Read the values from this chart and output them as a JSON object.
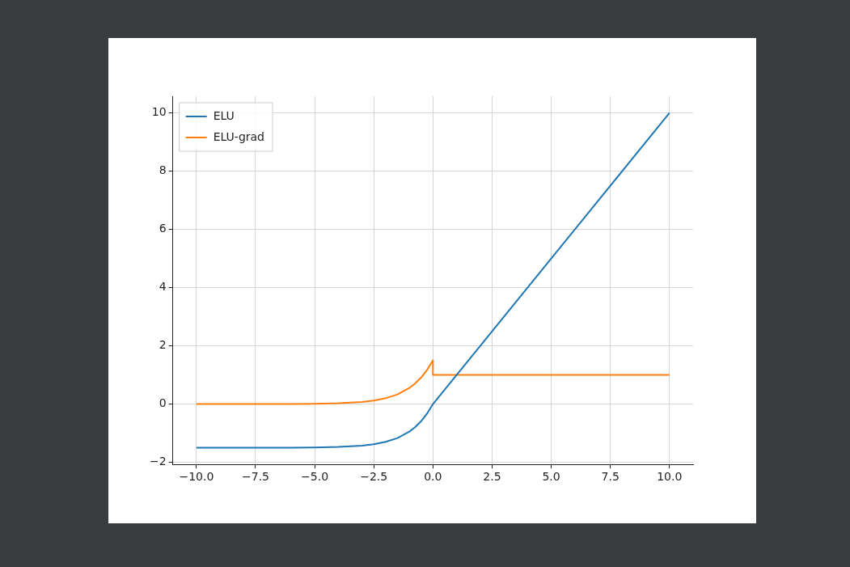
{
  "chart_data": {
    "type": "line",
    "series": [
      {
        "name": "ELU",
        "color": "#1f77b4",
        "x": [
          -10,
          -8,
          -6,
          -5,
          -4,
          -3,
          -2.5,
          -2,
          -1.5,
          -1,
          -0.75,
          -0.5,
          -0.25,
          0,
          10
        ],
        "values": [
          -1.5,
          -1.5,
          -1.5,
          -1.49,
          -1.47,
          -1.43,
          -1.38,
          -1.3,
          -1.17,
          -0.95,
          -0.79,
          -0.59,
          -0.33,
          0,
          10
        ]
      },
      {
        "name": "ELU-grad",
        "color": "#ff7f0e",
        "x": [
          -10,
          -8,
          -6,
          -5,
          -4,
          -3,
          -2.5,
          -2,
          -1.5,
          -1,
          -0.75,
          -0.5,
          -0.25,
          0,
          0,
          10
        ],
        "values": [
          0,
          0,
          0,
          0.01,
          0.03,
          0.07,
          0.12,
          0.2,
          0.33,
          0.55,
          0.71,
          0.91,
          1.17,
          1.5,
          1,
          1
        ]
      }
    ],
    "xlim": [
      -11,
      11
    ],
    "xticks": [
      {
        "value": -10,
        "label": "−10.0"
      },
      {
        "value": -7.5,
        "label": "−7.5"
      },
      {
        "value": -5,
        "label": "−5.0"
      },
      {
        "value": -2.5,
        "label": "−2.5"
      },
      {
        "value": 0,
        "label": "0.0"
      },
      {
        "value": 2.5,
        "label": "2.5"
      },
      {
        "value": 5,
        "label": "5.0"
      },
      {
        "value": 7.5,
        "label": "7.5"
      },
      {
        "value": 10,
        "label": "10.0"
      }
    ],
    "ylim": [
      -2.075,
      10.575
    ],
    "yticks": [
      {
        "value": -2,
        "label": "−2"
      },
      0,
      2,
      4,
      6,
      8,
      10
    ],
    "grid": true,
    "legend": "top left",
    "marker": "none",
    "line_style": "solid"
  }
}
